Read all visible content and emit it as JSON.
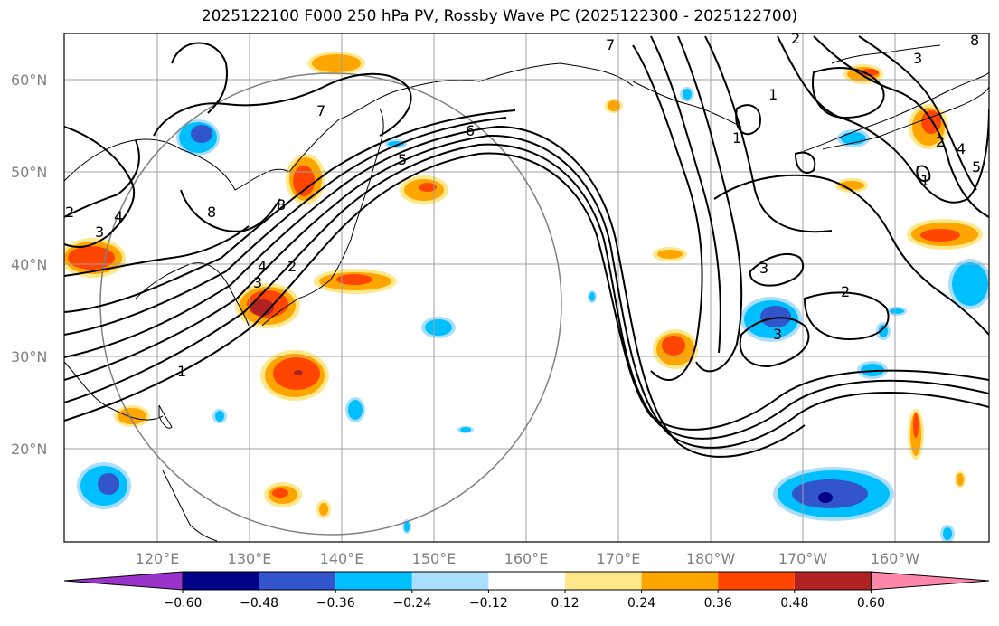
{
  "title": "2025122100 F000 250 hPa PV, Rossby Wave PC (2025122300 - 2025122700)",
  "map": {
    "lat_labels": [
      "60°N",
      "50°N",
      "40°N",
      "30°N",
      "20°N"
    ],
    "lon_labels": [
      "120°E",
      "130°E",
      "140°E",
      "150°E",
      "160°E",
      "170°E",
      "180°W",
      "170°W",
      "160°W"
    ],
    "contour_labels": [
      "7",
      "6",
      "5",
      "8",
      "2",
      "1",
      "3",
      "4",
      "2",
      "1",
      "3",
      "2",
      "3",
      "1",
      "2",
      "8",
      "7",
      "4",
      "5",
      "3",
      "2",
      "1",
      "8",
      "4",
      "3"
    ]
  },
  "colorbar": {
    "ticks": [
      "−0.60",
      "−0.48",
      "−0.36",
      "−0.24",
      "−0.12",
      "0.12",
      "0.24",
      "0.36",
      "0.48",
      "0.60"
    ],
    "colors": [
      "#9933cc",
      "#00008b",
      "#3355cc",
      "#00bfff",
      "#aadeff",
      "#ffffff",
      "#ffe88a",
      "#ffa500",
      "#ff4500",
      "#b22222",
      "#ff88aa"
    ]
  }
}
